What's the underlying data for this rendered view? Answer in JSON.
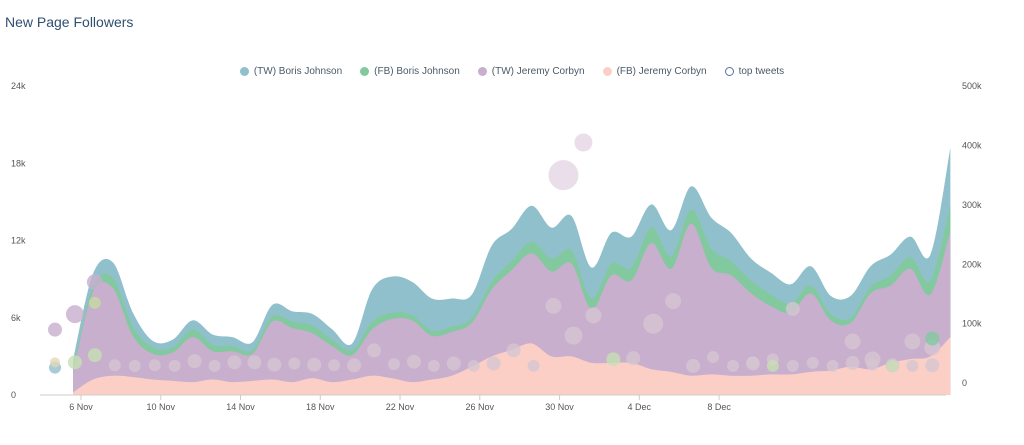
{
  "chart_data": {
    "type": "area",
    "title": "New Page Followers",
    "x_start": "2019-11-04",
    "x_ticks": [
      "6 Nov",
      "10 Nov",
      "14 Nov",
      "18 Nov",
      "22 Nov",
      "26 Nov",
      "30 Nov",
      "4 Dec",
      "8 Dec"
    ],
    "y_left_ticks": [
      "0",
      "6k",
      "12k",
      "18k",
      "24k"
    ],
    "y_left_lim": [
      0,
      24000
    ],
    "y_right_ticks": [
      "0",
      "100k",
      "200k",
      "300k",
      "400k",
      "500k"
    ],
    "y_right_lim": [
      -20000,
      500000
    ],
    "grid": false,
    "legend_position": "top-center",
    "series": [
      {
        "name": "(FB) Jeremy Corbyn",
        "color": "#fccfc6",
        "values": [
          200,
          1200,
          1500,
          1400,
          1200,
          1100,
          1000,
          1200,
          1000,
          1100,
          1200,
          1000,
          1300,
          1000,
          1200,
          1500,
          1300,
          1000,
          1200,
          1500,
          2200,
          3000,
          3500,
          4000,
          3000,
          3000,
          2500,
          2500,
          2500,
          2000,
          1800,
          1500,
          1600,
          1500,
          1500,
          1600,
          1600,
          1800,
          1900,
          2200,
          2000,
          2500,
          2800,
          3000,
          4500
        ]
      },
      {
        "name": "(TW) Jeremy Corbyn",
        "color": "#c7afcd",
        "values": [
          1500,
          6800,
          6800,
          3200,
          2000,
          2200,
          3500,
          2200,
          2400,
          2100,
          4500,
          4200,
          3500,
          2800,
          1900,
          3600,
          4600,
          4800,
          3400,
          3400,
          3400,
          5200,
          6200,
          7000,
          6600,
          7200,
          4200,
          6800,
          6400,
          9800,
          8000,
          11800,
          8300,
          7800,
          6400,
          5300,
          4800,
          6100,
          3900,
          3400,
          5900,
          6000,
          7000,
          4800,
          8200
        ]
      },
      {
        "name": "(FB) Boris Johnson",
        "color": "#82c9a0",
        "values": [
          200,
          400,
          800,
          700,
          500,
          400,
          600,
          500,
          400,
          300,
          400,
          500,
          600,
          500,
          400,
          600,
          500,
          400,
          400,
          400,
          400,
          600,
          700,
          900,
          1000,
          1000,
          800,
          900,
          1000,
          1200,
          1000,
          1100,
          1500,
          1100,
          1000,
          900,
          700,
          600,
          500,
          400,
          500,
          800,
          900,
          1100,
          2000
        ]
      },
      {
        "name": "(TW) Boris Johnson",
        "color": "#90c0cc",
        "values": [
          800,
          1000,
          1200,
          1100,
          500,
          600,
          700,
          800,
          700,
          600,
          900,
          800,
          900,
          800,
          500,
          2500,
          2800,
          2600,
          2500,
          2200,
          1800,
          2800,
          2500,
          2800,
          2400,
          2700,
          2400,
          2400,
          2400,
          1800,
          2000,
          1800,
          2400,
          2200,
          1700,
          1700,
          1500,
          1500,
          1400,
          1700,
          1600,
          1600,
          1600,
          2000,
          4500
        ]
      },
      {
        "name": "top tweets",
        "color": "#ffffff",
        "type": "bubble",
        "points": [
          {
            "d": 0,
            "y": 90000,
            "r": 7,
            "c": "#c7afcd"
          },
          {
            "d": 0,
            "y": 26000,
            "r": 6,
            "c": "#90c0cc"
          },
          {
            "d": 0,
            "y": 35000,
            "r": 5,
            "c": "#e4d7b6"
          },
          {
            "d": 1,
            "y": 116000,
            "r": 9,
            "c": "#c7afcd"
          },
          {
            "d": 1,
            "y": 35000,
            "r": 7,
            "c": "#c7dfb4"
          },
          {
            "d": 2,
            "y": 170000,
            "r": 8,
            "c": "#c7afcd"
          },
          {
            "d": 2,
            "y": 47000,
            "r": 7,
            "c": "#c7dfb4"
          },
          {
            "d": 2,
            "y": 135000,
            "r": 6,
            "c": "#c5dba0"
          },
          {
            "d": 3,
            "y": 30000,
            "r": 6,
            "c": "#d6c6d2"
          },
          {
            "d": 4,
            "y": 29000,
            "r": 6,
            "c": "#d6c6d2"
          },
          {
            "d": 5,
            "y": 30000,
            "r": 6,
            "c": "#d6c6d2"
          },
          {
            "d": 6,
            "y": 29000,
            "r": 6,
            "c": "#d6c6d2"
          },
          {
            "d": 7,
            "y": 37000,
            "r": 7,
            "c": "#d6c6d2"
          },
          {
            "d": 8,
            "y": 29000,
            "r": 6,
            "c": "#d6c6d2"
          },
          {
            "d": 9,
            "y": 35000,
            "r": 7,
            "c": "#d6c6d2"
          },
          {
            "d": 10,
            "y": 35000,
            "r": 7,
            "c": "#d6c6d2"
          },
          {
            "d": 11,
            "y": 31000,
            "r": 7,
            "c": "#d6c6d2"
          },
          {
            "d": 12,
            "y": 33000,
            "r": 6,
            "c": "#d6c6d2"
          },
          {
            "d": 13,
            "y": 31000,
            "r": 7,
            "c": "#d6c6d2"
          },
          {
            "d": 14,
            "y": 30000,
            "r": 6,
            "c": "#d6c6d2"
          },
          {
            "d": 15,
            "y": 30000,
            "r": 7,
            "c": "#d6c6d2"
          },
          {
            "d": 16,
            "y": 55000,
            "r": 7,
            "c": "#d6c6d2"
          },
          {
            "d": 17,
            "y": 32000,
            "r": 6,
            "c": "#d6c6d2"
          },
          {
            "d": 18,
            "y": 36000,
            "r": 7,
            "c": "#d6c6d2"
          },
          {
            "d": 19,
            "y": 29000,
            "r": 6,
            "c": "#d6c6d2"
          },
          {
            "d": 20,
            "y": 33000,
            "r": 7,
            "c": "#d6c6d2"
          },
          {
            "d": 21,
            "y": 29000,
            "r": 6,
            "c": "#d6c6d2"
          },
          {
            "d": 22,
            "y": 33000,
            "r": 7,
            "c": "#d6c6d2"
          },
          {
            "d": 23,
            "y": 55000,
            "r": 7,
            "c": "#d6c6d2"
          },
          {
            "d": 24,
            "y": 29000,
            "r": 6,
            "c": "#d6c6d2"
          },
          {
            "d": 25,
            "y": 130000,
            "r": 8,
            "c": "#d6c6d2"
          },
          {
            "d": 26,
            "y": 80000,
            "r": 9,
            "c": "#d6c6d2"
          },
          {
            "d": 27,
            "y": 114000,
            "r": 8,
            "c": "#d6c6d2"
          },
          {
            "d": 28,
            "y": 40000,
            "r": 7,
            "c": "#c7dfb4"
          },
          {
            "d": 29,
            "y": 42000,
            "r": 7,
            "c": "#d6c6d2"
          },
          {
            "d": 30,
            "y": 100000,
            "r": 10,
            "c": "#d6c6d2"
          },
          {
            "d": 31,
            "y": 138000,
            "r": 8,
            "c": "#d6c6d2"
          },
          {
            "d": 32,
            "y": 29000,
            "r": 7,
            "c": "#d6c6d2"
          },
          {
            "d": 33,
            "y": 44000,
            "r": 6,
            "c": "#d6c6d2"
          },
          {
            "d": 34,
            "y": 29000,
            "r": 6,
            "c": "#d6c6d2"
          },
          {
            "d": 35,
            "y": 33000,
            "r": 7,
            "c": "#d6c6d2"
          },
          {
            "d": 36,
            "y": 40000,
            "r": 6,
            "c": "#d6c6d2"
          },
          {
            "d": 37,
            "y": 29000,
            "r": 6,
            "c": "#d6c6d2"
          },
          {
            "d": 38,
            "y": 34000,
            "r": 6,
            "c": "#d6c6d2"
          },
          {
            "d": 39,
            "y": 29000,
            "r": 6,
            "c": "#d6c6d2"
          },
          {
            "d": 40,
            "y": 34000,
            "r": 7,
            "c": "#d6c6d2"
          },
          {
            "d": 41,
            "y": 31000,
            "r": 6,
            "c": "#d6c6d2"
          },
          {
            "d": 42,
            "y": 30000,
            "r": 7,
            "c": "#d6c6d2"
          },
          {
            "d": 43,
            "y": 29000,
            "r": 6,
            "c": "#d6c6d2"
          },
          {
            "d": 44,
            "y": 30000,
            "r": 7,
            "c": "#d6c6d2"
          },
          {
            "d": 25.5,
            "y": 350000,
            "r": 15,
            "c": "#e3d6e4"
          },
          {
            "d": 26.5,
            "y": 405000,
            "r": 9,
            "c": "#e3d6e4"
          },
          {
            "d": 37,
            "y": 125000,
            "r": 7,
            "c": "#d6c6d2"
          },
          {
            "d": 40,
            "y": 70000,
            "r": 8,
            "c": "#d6c6d2"
          },
          {
            "d": 41,
            "y": 40000,
            "r": 8,
            "c": "#d6c6d2"
          },
          {
            "d": 43,
            "y": 70000,
            "r": 8,
            "c": "#d6c6d2"
          },
          {
            "d": 44,
            "y": 60000,
            "r": 8,
            "c": "#d6c6d2"
          },
          {
            "d": 35,
            "y": 35000,
            "r": 6,
            "c": "#d6c6d2"
          },
          {
            "d": 36,
            "y": 29000,
            "r": 6,
            "c": "#c7dfb4"
          },
          {
            "d": 42,
            "y": 29000,
            "r": 6,
            "c": "#c7dfb4"
          },
          {
            "d": 44,
            "y": 75000,
            "r": 7,
            "c": "#82c9a0"
          }
        ]
      }
    ]
  }
}
